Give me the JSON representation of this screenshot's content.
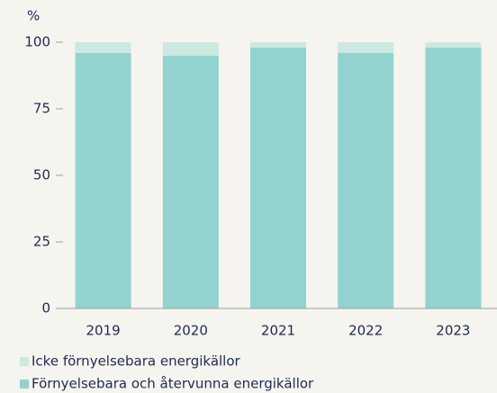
{
  "chart_data": {
    "type": "stacked-bar",
    "y_unit_label": "%",
    "categories": [
      "2019",
      "2020",
      "2021",
      "2022",
      "2023"
    ],
    "series": [
      {
        "name": "Icke förnyelsebara energikällor",
        "color": "#cde8e0",
        "values": [
          4,
          5,
          2,
          4,
          2
        ]
      },
      {
        "name": "Förnyelsebara och återvunna energikällor",
        "color": "#93d3cf",
        "values": [
          96,
          95,
          98,
          96,
          98
        ]
      }
    ],
    "ylim": [
      0,
      100
    ],
    "yticks": [
      0,
      25,
      50,
      75,
      100
    ]
  }
}
